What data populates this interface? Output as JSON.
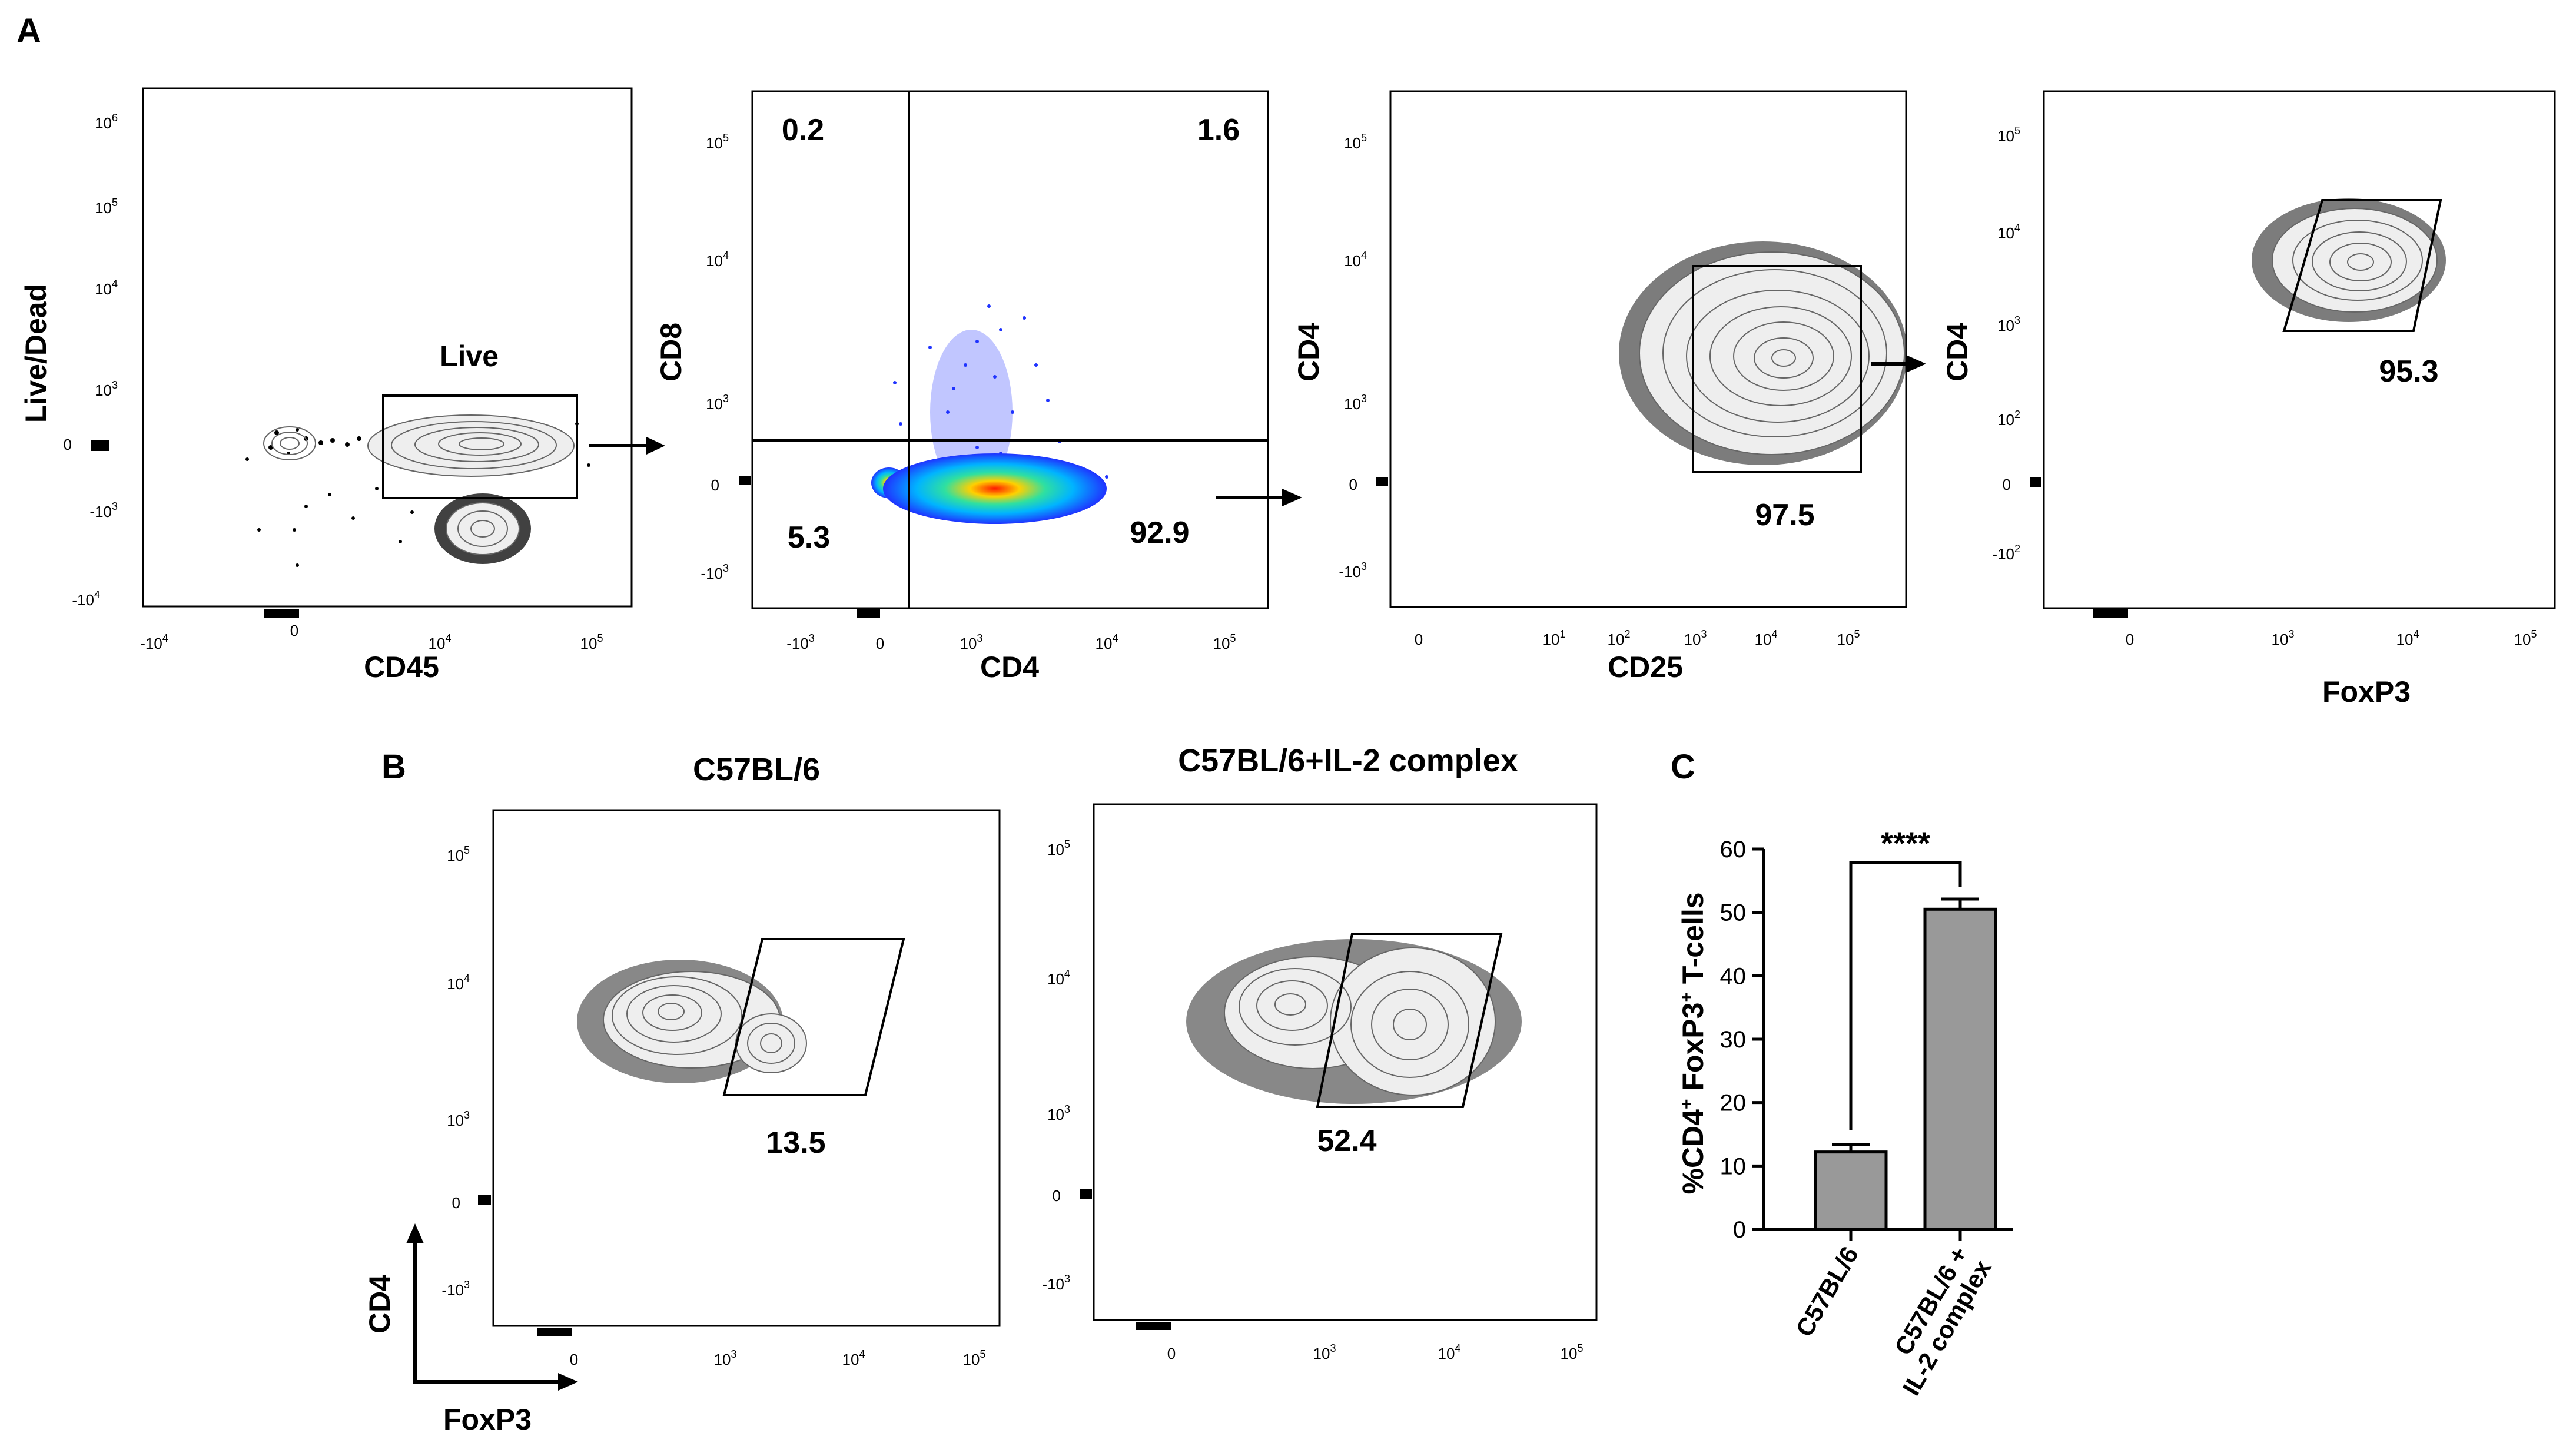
{
  "panel_labels": {
    "a": "A",
    "b": "B",
    "c": "C"
  },
  "ticks": {
    "neg_1e4": "-10",
    "neg_1e3": "-10",
    "zero": "0",
    "e1": "10",
    "e2": "10",
    "e3": "10",
    "e4": "10",
    "e5": "10",
    "e6": "10",
    "exp1": "1",
    "exp2": "2",
    "exp3": "3",
    "exp4": "4",
    "exp5": "5",
    "exp6": "6",
    "neg_exp2": "2",
    "neg_exp3": "3",
    "neg_exp4": "4"
  },
  "panelA": {
    "plot1": {
      "xlabel": "CD45",
      "ylabel": "Live/Dead",
      "gate_label": "Live"
    },
    "plot2": {
      "xlabel": "CD4",
      "ylabel": "CD8",
      "q_ul": "0.2",
      "q_ur": "1.6",
      "q_ll": "5.3",
      "q_lr": "92.9"
    },
    "plot3": {
      "xlabel": "CD25",
      "ylabel": "CD4",
      "gate_value": "97.5"
    },
    "plot4": {
      "xlabel": "FoxP3",
      "ylabel": "CD4",
      "gate_value": "95.3"
    }
  },
  "panelB": {
    "plot1": {
      "title": "C57BL/6",
      "gate_value": "13.5"
    },
    "plot2": {
      "title": "C57BL/6+IL-2 complex",
      "gate_value": "52.4"
    },
    "axis_key": {
      "y": "CD4",
      "x": "FoxP3"
    }
  },
  "colors": {
    "bar_fill": "#999999",
    "flow_low": "#1f33ff",
    "flow_high": "#ff1a00"
  },
  "chart_data": {
    "type": "bar",
    "title": "",
    "ylabel": "%CD4+ FoxP3+ T-cells",
    "ylabel_parts": {
      "a": "%CD4",
      "b": "+",
      "c": " FoxP3",
      "d": "+",
      "e": " T-cells"
    },
    "xlabel": "",
    "categories": [
      "C57BL/6",
      "C57BL/6 + IL-2 complex"
    ],
    "category_lines": [
      [
        "C57BL/6"
      ],
      [
        "C57BL/6 +",
        "IL-2 complex"
      ]
    ],
    "values": [
      12.2,
      50.5
    ],
    "errors": [
      1.2,
      1.6
    ],
    "ylim": [
      0,
      60
    ],
    "yticks": [
      0,
      10,
      20,
      30,
      40,
      50,
      60
    ],
    "yticklabels": [
      "0",
      "10",
      "20",
      "30",
      "40",
      "50",
      "60"
    ],
    "significance": "****"
  }
}
